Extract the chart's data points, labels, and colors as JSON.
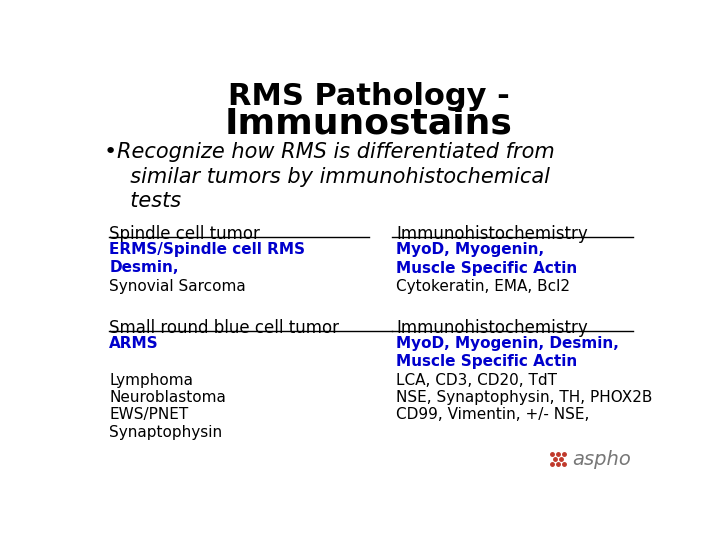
{
  "title_line1": "RMS Pathology -",
  "title_line2": "Immunostains",
  "bg_color": "#ffffff",
  "title_color": "#000000",
  "bullet_color": "#000000",
  "header_color": "#000000",
  "blue_color": "#0000cc",
  "black_color": "#000000",
  "spindle_header_left": "Spindle cell tumor",
  "spindle_header_right": "Immunohistochemistry",
  "small_header_left": "Small round blue cell tumor",
  "small_header_right": "Immunohistochemistry",
  "aspho_text": "aspho",
  "aspho_color": "#777777"
}
